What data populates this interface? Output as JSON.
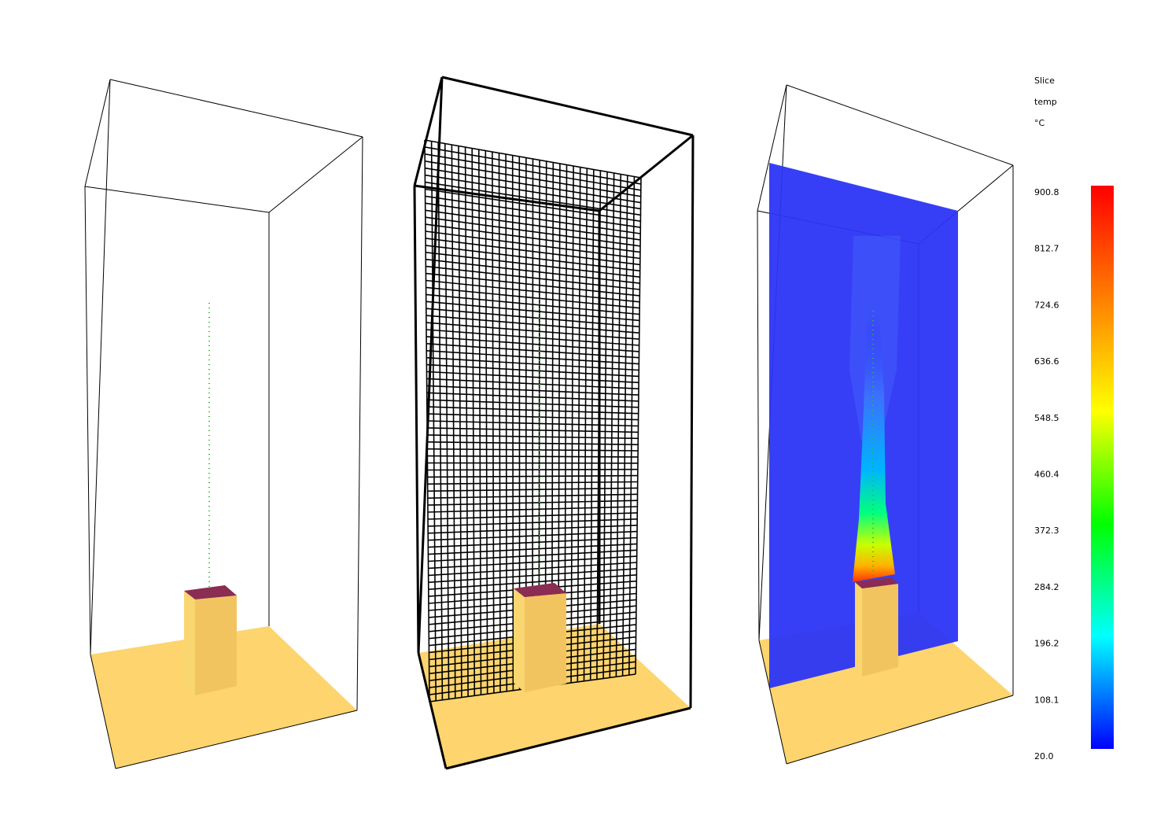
{
  "panels": [
    {
      "id": "geometry",
      "label": ""
    },
    {
      "id": "mesh",
      "label": ""
    },
    {
      "id": "slice",
      "label": ""
    }
  ],
  "colorbar": {
    "title": [
      "Slice",
      "temp",
      "°C"
    ],
    "ticks": [
      "900.8",
      "812.7",
      "724.6",
      "636.6",
      "548.5",
      "460.4",
      "372.3",
      "284.2",
      "196.2",
      "108.1",
      "20.0"
    ],
    "gradient_colors": [
      "#ff0000",
      "#ff7f00",
      "#ffff00",
      "#00ff00",
      "#00ffff",
      "#0000ff"
    ]
  },
  "colors": {
    "floor": "#fdd46e",
    "obstruction_front": "#f2c460",
    "obstruction_side": "#f9d670",
    "vent": "#8b2c52",
    "slice_background": "#2b35f5",
    "device_dots": "#22c122",
    "outline": "#000000"
  }
}
